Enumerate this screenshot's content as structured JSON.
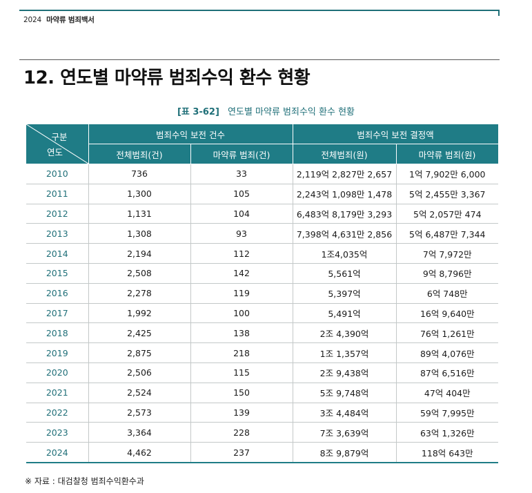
{
  "running_head": {
    "year": "2024",
    "book": "마약류 범죄백서"
  },
  "title": "12. 연도별 마약류 범죄수익 환수 현황",
  "caption": {
    "number": "[표 3-62]",
    "text": "연도별 마약류 범죄수익 환수 현황"
  },
  "table": {
    "corner_top": "구분",
    "corner_bottom": "연도",
    "group_headers": [
      "범죄수익 보전 건수",
      "범죄수익 보전 결정액"
    ],
    "sub_headers": [
      "전체범죄(건)",
      "마약류 범죄(건)",
      "전체범죄(원)",
      "마약류 범죄(원)"
    ],
    "rows": [
      [
        "2010",
        "736",
        "33",
        "2,119억 2,827만 2,657",
        "1억 7,902만 6,000"
      ],
      [
        "2011",
        "1,300",
        "105",
        "2,243억 1,098만 1,478",
        "5억 2,455만 3,367"
      ],
      [
        "2012",
        "1,131",
        "104",
        "6,483억 8,179만 3,293",
        "5억 2,057만 474"
      ],
      [
        "2013",
        "1,308",
        "93",
        "7,398억 4,631만 2,856",
        "5억 6,487만 7,344"
      ],
      [
        "2014",
        "2,194",
        "112",
        "1조4,035억",
        "7억 7,972만"
      ],
      [
        "2015",
        "2,508",
        "142",
        "5,561억",
        "9억 8,796만"
      ],
      [
        "2016",
        "2,278",
        "119",
        "5,397억",
        "6억 748만"
      ],
      [
        "2017",
        "1,992",
        "100",
        "5,491억",
        "16억 9,640만"
      ],
      [
        "2018",
        "2,425",
        "138",
        "2조 4,390억",
        "76억 1,261만"
      ],
      [
        "2019",
        "2,875",
        "218",
        "1조 1,357억",
        "89억 4,076만"
      ],
      [
        "2020",
        "2,506",
        "115",
        "2조 9,438억",
        "87억 6,516만"
      ],
      [
        "2021",
        "2,524",
        "150",
        "5조 9,748억",
        "47억 404만"
      ],
      [
        "2022",
        "2,573",
        "139",
        "3조 4,484억",
        "59억 7,995만"
      ],
      [
        "2023",
        "3,364",
        "228",
        "7조 3,639억",
        "63억 1,326만"
      ],
      [
        "2024",
        "4,462",
        "237",
        "8조 9,879억",
        "118억 643만"
      ]
    ]
  },
  "source": "※ 자료 : 대검찰청 범죄수익환수과",
  "colors": {
    "accent": "#1f6f78",
    "header_bg": "#1f7c86"
  }
}
